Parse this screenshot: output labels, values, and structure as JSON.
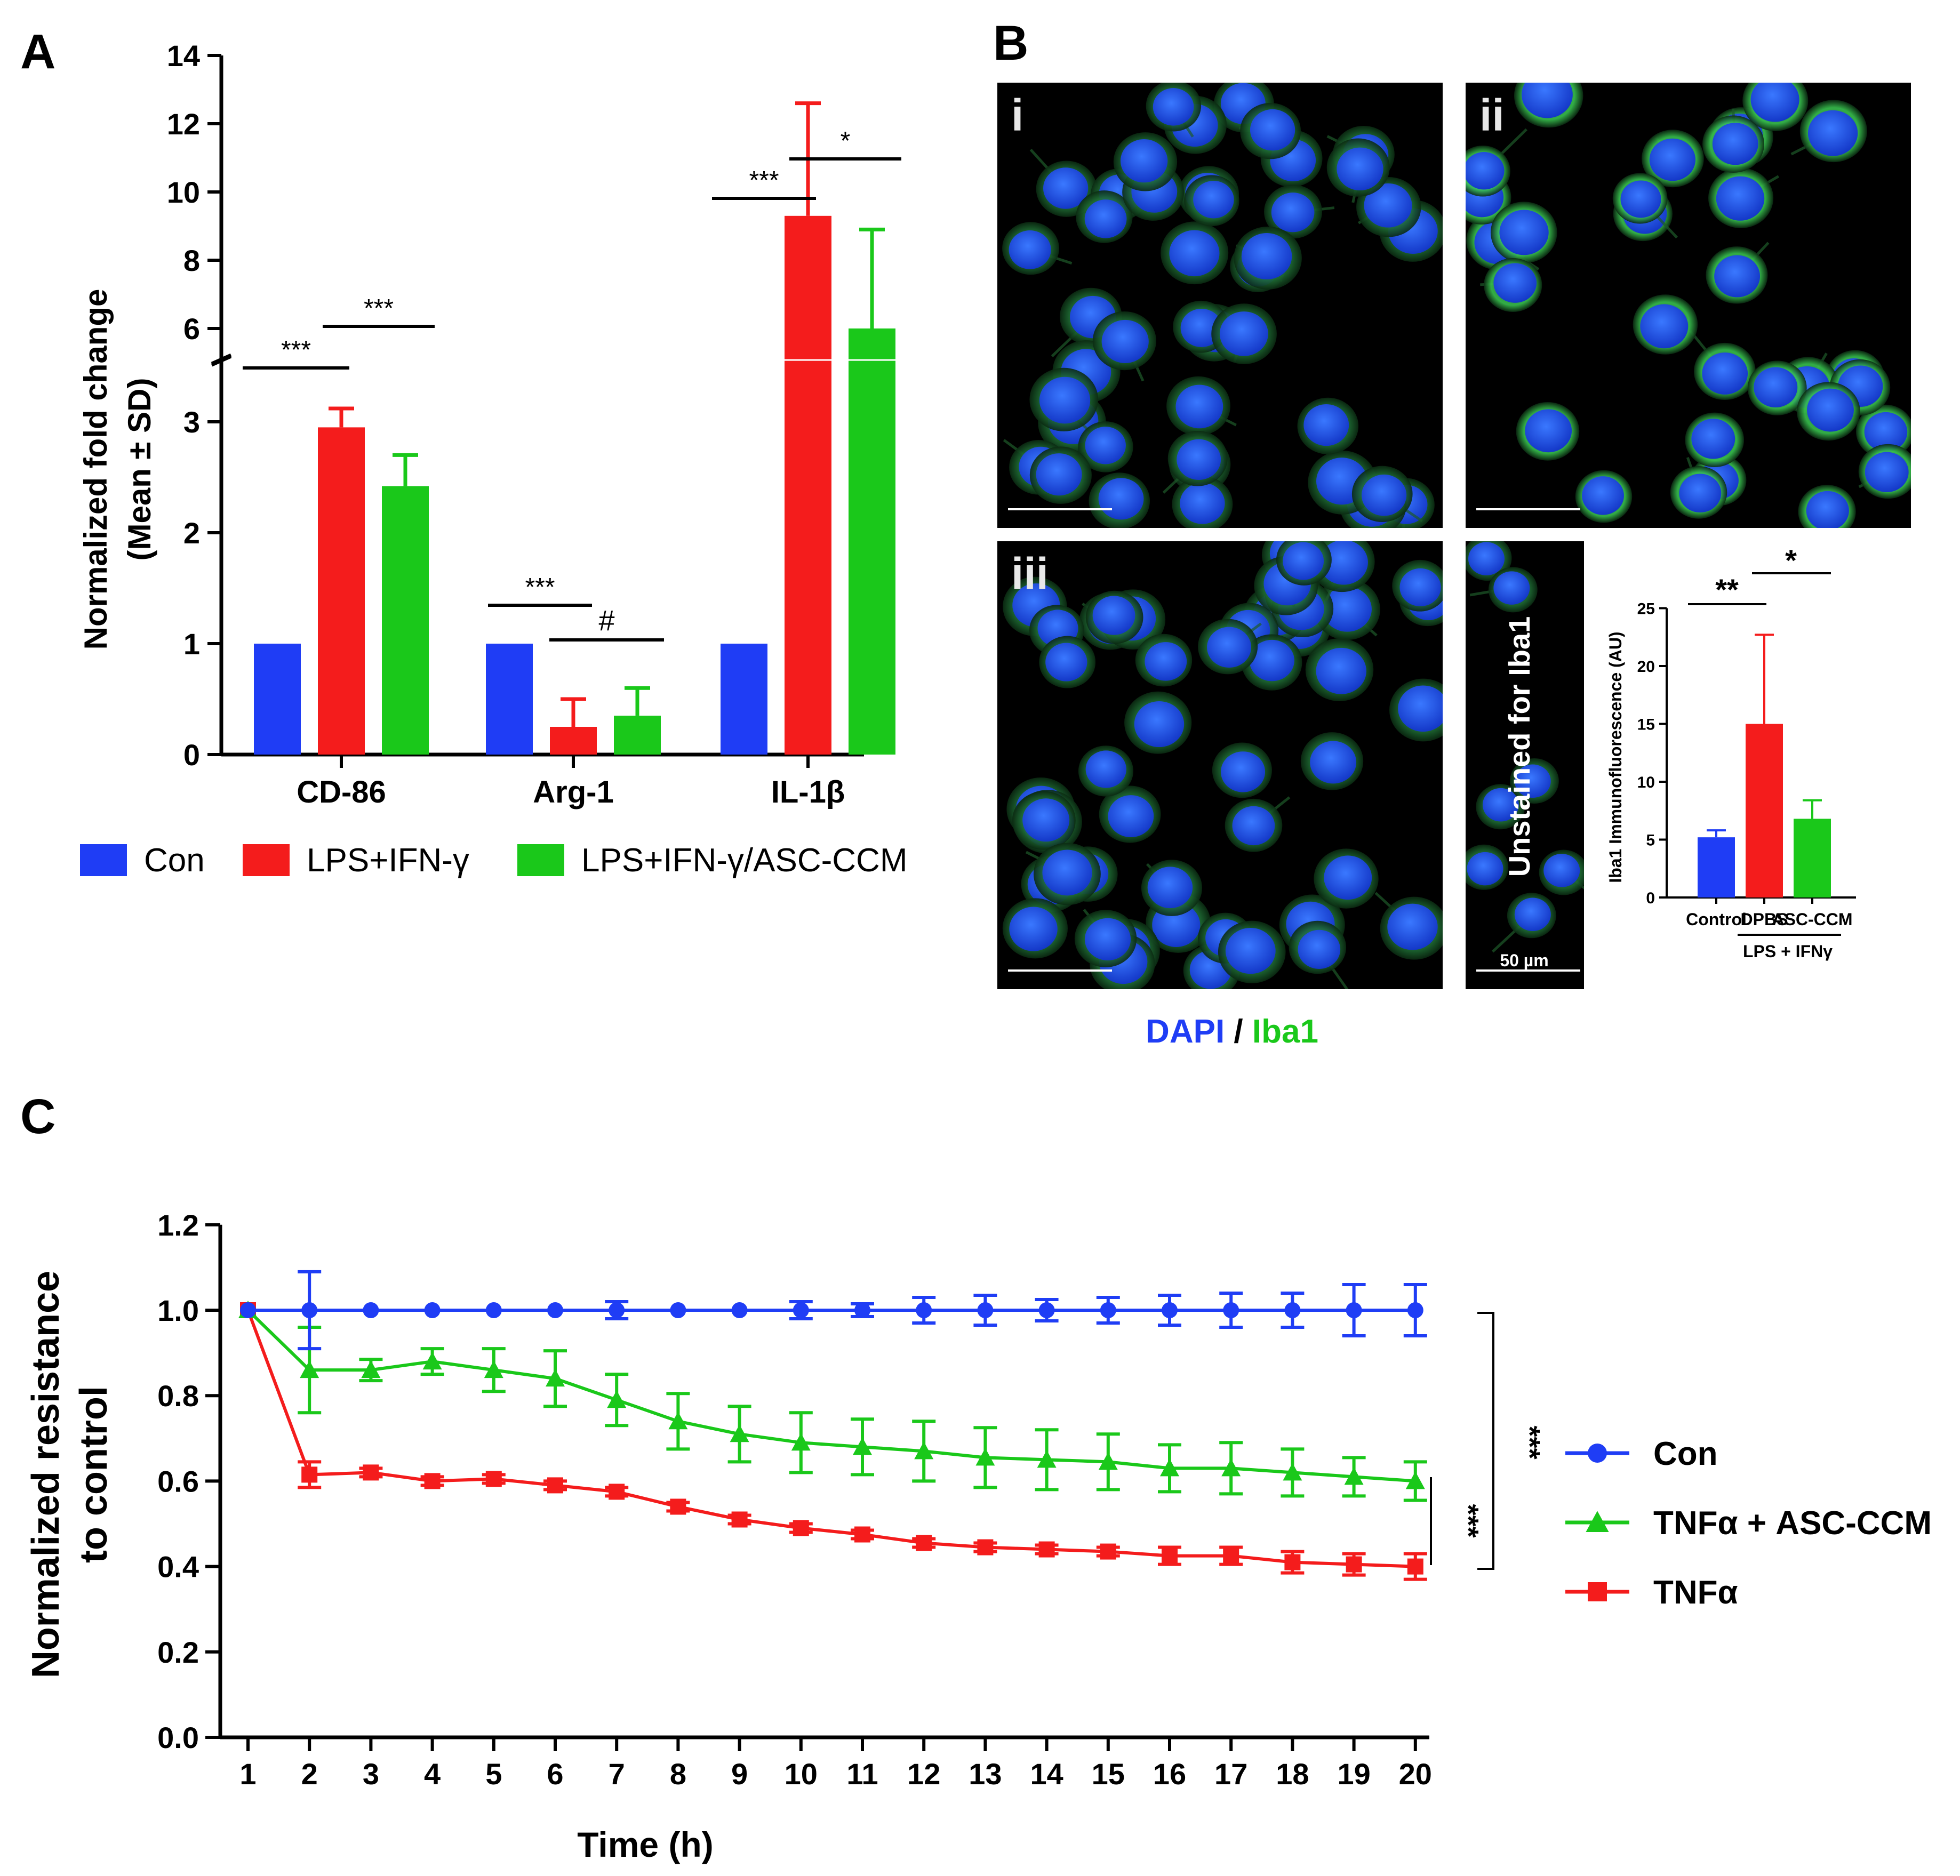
{
  "panel_letters": {
    "a": "A",
    "b": "B",
    "c": "C"
  },
  "colors": {
    "blue": "#1f3df5",
    "red": "#f41c1c",
    "green": "#1ac81a",
    "black": "#000000"
  },
  "chart_data": [
    {
      "id": "A",
      "type": "bar",
      "categories": [
        "CD-86",
        "Arg-1",
        "IL-1β"
      ],
      "series": [
        {
          "name": "Con",
          "color": "#1f3df5",
          "values": [
            1,
            1,
            1
          ],
          "errors": [
            0,
            0,
            0
          ]
        },
        {
          "name": "LPS+IFN-γ",
          "color": "#f41c1c",
          "values": [
            2.95,
            0.25,
            9.3
          ],
          "errors": [
            0.17,
            0.25,
            3.3
          ]
        },
        {
          "name": "LPS+IFN-γ/ASC-CCM",
          "color": "#1ac81a",
          "values": [
            2.42,
            0.35,
            6.0
          ],
          "errors": [
            0.28,
            0.25,
            2.9
          ]
        }
      ],
      "ylabel_line1": "Normalized fold change",
      "ylabel_line2": "(Mean ± SD)",
      "y_axis_break": [
        3.5,
        5
      ],
      "ylim_lower": [
        0,
        3.5
      ],
      "ylim_upper": [
        5,
        14
      ],
      "yticks_lower": [
        "0",
        "1",
        "2",
        "3"
      ],
      "yticks_upper": [
        "6",
        "8",
        "10",
        "12",
        "14"
      ],
      "significance": [
        "***",
        "***",
        "***",
        "#",
        "***",
        "*"
      ]
    },
    {
      "id": "B-inset",
      "type": "bar",
      "categories": [
        "Control",
        "DPBS",
        "ASC-CCM"
      ],
      "values": [
        5.2,
        15.0,
        6.8
      ],
      "errors": [
        0.6,
        7.7,
        1.6
      ],
      "colors": [
        "#1f3df5",
        "#f41c1c",
        "#1ac81a"
      ],
      "ylabel": "Iba1 Immunofluorescence (AU)",
      "xgroup_label": "LPS + IFNγ",
      "ylim": [
        0,
        25
      ],
      "yticks": [
        "0",
        "5",
        "10",
        "15",
        "20",
        "25"
      ],
      "significance": [
        "**",
        "*"
      ]
    },
    {
      "id": "C",
      "type": "line",
      "x": [
        1,
        2,
        3,
        4,
        5,
        6,
        7,
        8,
        9,
        10,
        11,
        12,
        13,
        14,
        15,
        16,
        17,
        18,
        19,
        20
      ],
      "xticks": [
        "1",
        "2",
        "3",
        "4",
        "5",
        "6",
        "7",
        "8",
        "9",
        "10",
        "11",
        "12",
        "13",
        "14",
        "15",
        "16",
        "17",
        "18",
        "19",
        "20"
      ],
      "yticks": [
        "0.0",
        "0.2",
        "0.4",
        "0.6",
        "0.8",
        "1.0",
        "1.2"
      ],
      "ylim": [
        0,
        1.2
      ],
      "xlabel": "Time (h)",
      "ylabel_line1": "Normalized resistance",
      "ylabel_line2": "to control",
      "series": [
        {
          "name": "Con",
          "color": "#1f3df5",
          "marker": "circle",
          "values": [
            1.0,
            1.0,
            1.0,
            1.0,
            1.0,
            1.0,
            1.0,
            1.0,
            1.0,
            1.0,
            1.0,
            1.0,
            1.0,
            1.0,
            1.0,
            1.0,
            1.0,
            1.0,
            1.0,
            1.0
          ],
          "errors": [
            0,
            0.09,
            0,
            0,
            0,
            0,
            0.02,
            0,
            0,
            0.02,
            0.015,
            0.03,
            0.035,
            0.025,
            0.03,
            0.035,
            0.04,
            0.04,
            0.06,
            0.06
          ]
        },
        {
          "name": "TNFα + ASC-CCM",
          "color": "#1ac81a",
          "marker": "triangle",
          "values": [
            1.0,
            0.86,
            0.86,
            0.88,
            0.86,
            0.84,
            0.79,
            0.74,
            0.71,
            0.69,
            0.68,
            0.67,
            0.655,
            0.65,
            0.645,
            0.63,
            0.63,
            0.62,
            0.61,
            0.6
          ],
          "errors": [
            0,
            0.1,
            0.025,
            0.03,
            0.05,
            0.065,
            0.06,
            0.065,
            0.065,
            0.07,
            0.065,
            0.07,
            0.07,
            0.07,
            0.065,
            0.055,
            0.06,
            0.055,
            0.045,
            0.045
          ]
        },
        {
          "name": "TNFα",
          "color": "#f41c1c",
          "marker": "square",
          "values": [
            1.0,
            0.615,
            0.62,
            0.6,
            0.605,
            0.59,
            0.575,
            0.54,
            0.51,
            0.49,
            0.475,
            0.455,
            0.445,
            0.44,
            0.435,
            0.425,
            0.425,
            0.41,
            0.405,
            0.4
          ],
          "errors": [
            0,
            0.03,
            0.01,
            0.01,
            0.01,
            0.01,
            0.01,
            0.01,
            0.01,
            0.01,
            0.01,
            0.01,
            0.01,
            0.01,
            0.01,
            0.02,
            0.02,
            0.025,
            0.025,
            0.03
          ]
        }
      ],
      "significance": [
        "***",
        "***"
      ]
    }
  ],
  "microscopy": {
    "panel_labels": [
      "i",
      "ii",
      "iii"
    ],
    "unstained_label": "Unstained for Iba1",
    "scale_bar_label": "50 µm",
    "caption_dapi": "DAPI",
    "caption_sep": " / ",
    "caption_iba1": "Iba1"
  }
}
